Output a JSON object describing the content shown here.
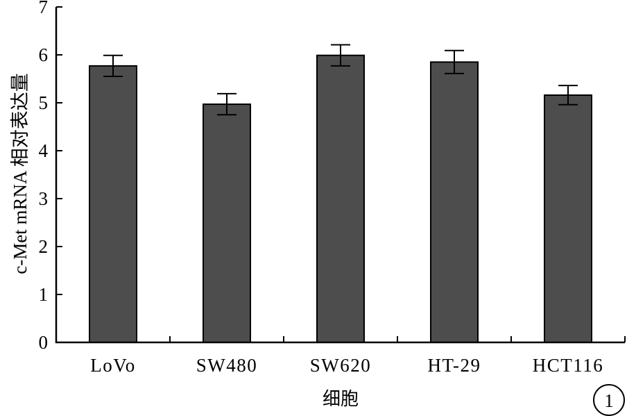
{
  "chart_data": {
    "type": "bar",
    "title": "",
    "xlabel": "细胞",
    "ylabel": "c-Met mRNA 相对表达量",
    "categories": [
      "LoVo",
      "SW480",
      "SW620",
      "HT-29",
      "HCT116"
    ],
    "values": [
      5.77,
      4.97,
      5.99,
      5.85,
      5.16
    ],
    "errors": [
      0.22,
      0.22,
      0.22,
      0.24,
      0.2
    ],
    "ylim": [
      0,
      7
    ],
    "yticks": [
      0,
      1,
      2,
      3,
      4,
      5,
      6,
      7
    ],
    "grid": false,
    "legend": "none",
    "bar_color": "#4d4d4d",
    "annotation": "1"
  }
}
